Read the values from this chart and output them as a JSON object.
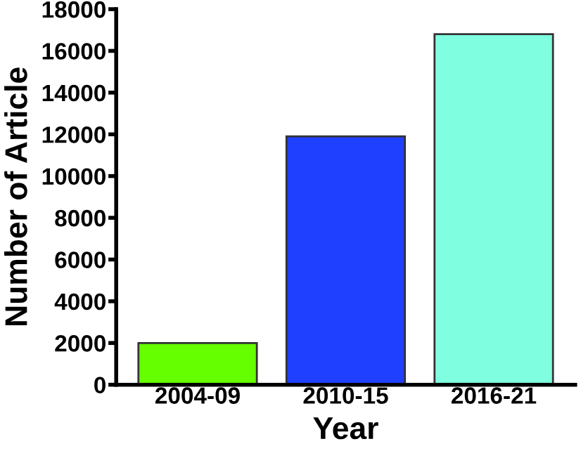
{
  "chart_data": {
    "type": "bar",
    "xlabel": "Year",
    "ylabel": "Number of Article",
    "categories": [
      "2004-09",
      "2010-15",
      "2016-21"
    ],
    "values": [
      2000,
      11900,
      16800
    ],
    "colors": [
      "#66ff00",
      "#2040ff",
      "#80ffe0"
    ],
    "ylim": [
      0,
      18000
    ],
    "yticks": [
      0,
      2000,
      4000,
      6000,
      8000,
      10000,
      12000,
      14000,
      16000,
      18000
    ],
    "grid": false,
    "legend": false
  }
}
